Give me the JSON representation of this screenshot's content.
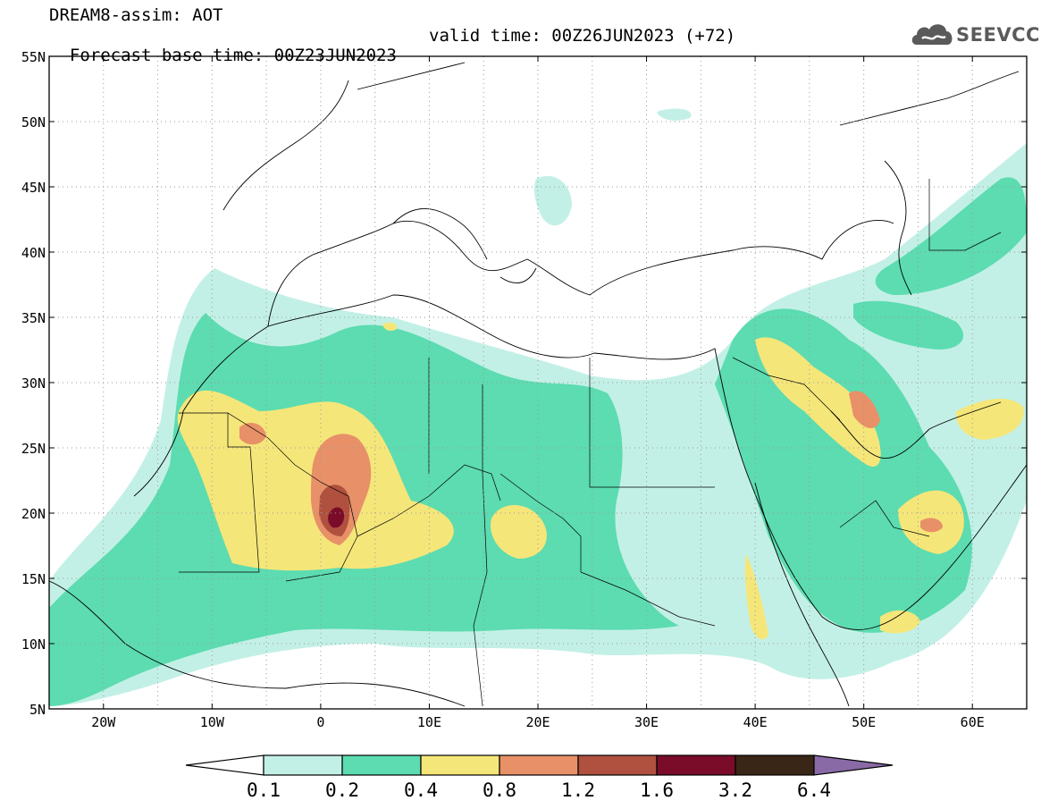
{
  "header": {
    "title_line1": "DREAM8-assim: AOT",
    "base_time": "Forecast base time: 00Z23JUN2023",
    "valid_time": "valid time: 00Z26JUN2023 (+72)"
  },
  "logo": {
    "text": "SEEVCCC",
    "icon": "cloud-icon"
  },
  "map": {
    "lat_labels": [
      "55N",
      "50N",
      "45N",
      "40N",
      "35N",
      "30N",
      "25N",
      "20N",
      "15N",
      "10N",
      "5N"
    ],
    "lon_labels": [
      "20W",
      "10W",
      "0",
      "10E",
      "20E",
      "30E",
      "40E",
      "50E",
      "60E"
    ],
    "lat_range": [
      5,
      55
    ],
    "lon_range": [
      -25,
      65
    ],
    "grid": "dotted"
  },
  "legend": {
    "thresholds": [
      "0.1",
      "0.2",
      "0.4",
      "0.8",
      "1.2",
      "1.6",
      "3.2",
      "6.4"
    ],
    "colors": [
      "#ffffff",
      "#c3f0e6",
      "#5cdcb0",
      "#f5e67a",
      "#e89068",
      "#b0503e",
      "#7a0c2a",
      "#3a2616",
      "#8a6aa6"
    ]
  },
  "palette": {
    "c1": "#c3f0e6",
    "c2": "#5cdcb0",
    "c3": "#f5e67a",
    "c4": "#e89068",
    "c5": "#b0503e",
    "c6": "#7a0c2a"
  }
}
